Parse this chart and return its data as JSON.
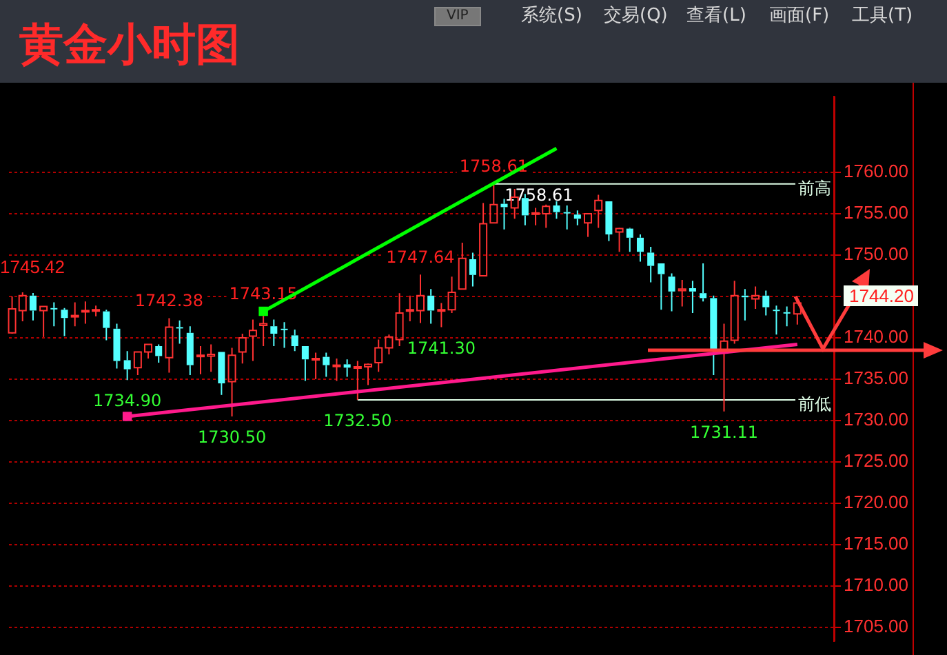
{
  "chart_data": {
    "type": "candlestick",
    "title": "黄金小时图",
    "categories": [
      null,
      null,
      null,
      null,
      null,
      null,
      null,
      null,
      null,
      null,
      null,
      null,
      null,
      null,
      null,
      null,
      null,
      null,
      null,
      null,
      null,
      null,
      null,
      null,
      null,
      null,
      null,
      null,
      null,
      null,
      null,
      null,
      null,
      null,
      null,
      null,
      null,
      null,
      null,
      null,
      null,
      null,
      null,
      null,
      null,
      null,
      null,
      null,
      null,
      null,
      null,
      null,
      null,
      null,
      null,
      null,
      null,
      null,
      null,
      null,
      null,
      null,
      null,
      null,
      null,
      null,
      null,
      null,
      null,
      null,
      null,
      null,
      null,
      null,
      null,
      null
    ],
    "ohlc": [
      [
        1740.6,
        1745.0,
        1740.5,
        1743.5
      ],
      [
        1743.3,
        1745.5,
        1742.0,
        1745.1
      ],
      [
        1745.1,
        1745.42,
        1742.1,
        1743.3
      ],
      [
        1743.3,
        1743.8,
        1740.1,
        1743.8
      ],
      [
        1743.6,
        1744.3,
        1741.4,
        1743.5
      ],
      [
        1743.4,
        1743.6,
        1740.2,
        1742.4
      ],
      [
        1742.6,
        1744.3,
        1741.4,
        1742.7
      ],
      [
        1743.2,
        1744.4,
        1741.7,
        1743.3
      ],
      [
        1743.3,
        1743.9,
        1742.6,
        1743.4
      ],
      [
        1743.2,
        1743.4,
        1739.7,
        1741.2
      ],
      [
        1741.1,
        1741.7,
        1736.3,
        1737.2
      ],
      [
        1737.3,
        1738.4,
        1734.9,
        1736.2
      ],
      [
        1736.4,
        1738.3,
        1735.5,
        1738.3
      ],
      [
        1738.3,
        1739.2,
        1737.5,
        1739.2
      ],
      [
        1739.0,
        1739.2,
        1737.0,
        1737.8
      ],
      [
        1737.6,
        1742.38,
        1735.8,
        1741.3
      ],
      [
        1741.3,
        1742.1,
        1739.3,
        1741.2
      ],
      [
        1740.6,
        1741.4,
        1735.5,
        1736.7
      ],
      [
        1737.8,
        1739.0,
        1735.6,
        1737.9
      ],
      [
        1737.8,
        1739.2,
        1735.9,
        1738.0
      ],
      [
        1738.3,
        1738.3,
        1733.1,
        1734.5
      ],
      [
        1734.7,
        1738.8,
        1730.5,
        1737.9
      ],
      [
        1738.3,
        1740.5,
        1736.9,
        1740.0
      ],
      [
        1740.2,
        1742.2,
        1737.2,
        1740.9
      ],
      [
        1741.5,
        1743.15,
        1739.0,
        1741.7
      ],
      [
        1741.4,
        1742.2,
        1739.0,
        1740.5
      ],
      [
        1741.1,
        1741.9,
        1738.8,
        1741.0
      ],
      [
        1740.3,
        1741.0,
        1738.4,
        1739.0
      ],
      [
        1739.0,
        1739.0,
        1734.8,
        1737.4
      ],
      [
        1737.4,
        1738.2,
        1735.0,
        1737.5
      ],
      [
        1737.7,
        1738.2,
        1735.3,
        1736.7
      ],
      [
        1736.6,
        1737.5,
        1734.8,
        1736.7
      ],
      [
        1736.8,
        1737.4,
        1735.3,
        1736.4
      ],
      [
        1736.4,
        1737.2,
        1732.5,
        1736.5
      ],
      [
        1736.5,
        1736.9,
        1734.3,
        1736.8
      ],
      [
        1737.0,
        1739.8,
        1735.9,
        1738.8
      ],
      [
        1738.8,
        1740.4,
        1738.0,
        1740.1
      ],
      [
        1739.8,
        1745.4,
        1739.0,
        1743.0
      ],
      [
        1743.3,
        1745.1,
        1742.0,
        1743.4
      ],
      [
        1743.3,
        1747.64,
        1741.8,
        1745.1
      ],
      [
        1745.1,
        1745.9,
        1741.7,
        1743.3
      ],
      [
        1743.3,
        1744.2,
        1741.3,
        1743.4
      ],
      [
        1743.4,
        1747.4,
        1743.0,
        1745.5
      ],
      [
        1745.9,
        1751.5,
        1745.9,
        1749.6
      ],
      [
        1749.5,
        1750.3,
        1746.2,
        1747.6
      ],
      [
        1747.5,
        1756.3,
        1747.5,
        1753.8
      ],
      [
        1753.9,
        1758.61,
        1753.9,
        1756.1
      ],
      [
        1756.2,
        1756.8,
        1753.1,
        1755.8
      ],
      [
        1755.7,
        1758.0,
        1754.4,
        1757.0
      ],
      [
        1756.9,
        1757.4,
        1753.6,
        1754.8
      ],
      [
        1755.0,
        1755.7,
        1753.6,
        1755.1
      ],
      [
        1755.0,
        1756.1,
        1753.3,
        1755.9
      ],
      [
        1756.0,
        1756.5,
        1754.4,
        1755.2
      ],
      [
        1755.2,
        1756.0,
        1753.1,
        1755.1
      ],
      [
        1754.9,
        1755.4,
        1753.6,
        1754.4
      ],
      [
        1753.9,
        1755.0,
        1752.2,
        1755.0
      ],
      [
        1755.4,
        1757.3,
        1753.3,
        1756.6
      ],
      [
        1756.5,
        1756.5,
        1751.7,
        1752.5
      ],
      [
        1752.8,
        1753.3,
        1750.4,
        1753.2
      ],
      [
        1753.2,
        1753.3,
        1750.4,
        1752.1
      ],
      [
        1752.1,
        1752.5,
        1749.2,
        1750.4
      ],
      [
        1750.3,
        1751.0,
        1746.7,
        1748.7
      ],
      [
        1749.0,
        1749.0,
        1743.4,
        1747.7
      ],
      [
        1747.4,
        1747.8,
        1743.2,
        1745.6
      ],
      [
        1745.7,
        1747.0,
        1743.8,
        1745.9
      ],
      [
        1746.0,
        1746.9,
        1743.0,
        1745.6
      ],
      [
        1745.4,
        1749.0,
        1744.4,
        1744.8
      ],
      [
        1744.8,
        1745.1,
        1735.5,
        1738.4
      ],
      [
        1738.2,
        1741.7,
        1731.11,
        1739.6
      ],
      [
        1739.7,
        1746.9,
        1739.3,
        1745.1
      ],
      [
        1745.1,
        1745.9,
        1742.1,
        1744.9
      ],
      [
        1744.7,
        1746.2,
        1743.5,
        1745.1
      ],
      [
        1745.1,
        1745.7,
        1742.7,
        1743.7
      ],
      [
        1743.4,
        1743.9,
        1740.4,
        1743.3
      ],
      [
        1743.1,
        1743.8,
        1741.4,
        1743.0
      ],
      [
        1742.9,
        1744.5,
        1741.6,
        1744.2
      ]
    ],
    "series": [
      {
        "type": "line",
        "color": "#00ff00",
        "values": [
          null,
          null,
          null,
          null,
          null,
          null,
          null,
          null,
          null,
          null,
          null,
          null,
          null,
          null,
          null,
          null,
          null,
          null,
          null,
          null,
          null,
          null,
          null,
          null,
          1743.2,
          null,
          null,
          null,
          null,
          null,
          null,
          null,
          null,
          null,
          null,
          null,
          null,
          null,
          null,
          null,
          null,
          null,
          null,
          null,
          null,
          null,
          null,
          null,
          null,
          null,
          null,
          null,
          1762.9,
          null,
          null,
          null,
          null,
          null,
          null,
          null,
          null,
          null,
          null,
          null,
          null,
          null,
          null,
          null,
          null,
          null,
          null,
          null,
          null,
          null,
          null,
          null
        ]
      },
      {
        "type": "line",
        "color": "#ff1a8c",
        "values": [
          null,
          null,
          null,
          null,
          null,
          null,
          null,
          null,
          null,
          null,
          null,
          1730.5,
          null,
          null,
          null,
          null,
          null,
          null,
          null,
          null,
          null,
          null,
          null,
          null,
          null,
          null,
          null,
          null,
          null,
          null,
          null,
          null,
          null,
          null,
          null,
          null,
          null,
          null,
          null,
          null,
          null,
          null,
          null,
          null,
          null,
          null,
          null,
          null,
          null,
          null,
          null,
          null,
          null,
          null,
          null,
          null,
          null,
          null,
          null,
          null,
          null,
          null,
          null,
          null,
          null,
          null,
          null,
          null,
          null,
          null,
          null,
          null,
          null,
          null,
          null,
          1739.2
        ]
      }
    ],
    "ylim": [
      1703.3,
      1769.2
    ],
    "yticks": [
      {
        "value": 1705,
        "label": "1705.00"
      },
      {
        "value": 1710,
        "label": "1710.00"
      },
      {
        "value": 1715,
        "label": "1715.00"
      },
      {
        "value": 1720,
        "label": "1720.00"
      },
      {
        "value": 1725,
        "label": "1725.00"
      },
      {
        "value": 1730,
        "label": "1730.00"
      },
      {
        "value": 1735,
        "label": "1735.00"
      },
      {
        "value": 1740,
        "label": "1740.00"
      },
      {
        "value": 1745,
        "label": null
      },
      {
        "value": 1750,
        "label": "1750.00"
      },
      {
        "value": 1755,
        "label": "1755.00"
      },
      {
        "value": 1760,
        "label": "1760.00"
      }
    ],
    "grid": "y",
    "ref_lines": [
      {
        "axis": "y",
        "value": 1758.61,
        "label": "前高",
        "color": "#e0ffe8"
      },
      {
        "axis": "y",
        "value": 1732.5,
        "label": "前低",
        "color": "#e0ffe8"
      }
    ],
    "annotations": [
      "VIP",
      "系统(S)",
      "交易(Q)",
      "查看(L)",
      "画面(F)",
      "工具(T)",
      "1745.42",
      "1744.20",
      {
        "text": "1742.38",
        "y": 1742.38
      },
      {
        "text": "1743.15",
        "y": 1743.15
      },
      {
        "text": "1747.64",
        "y": 1747.64
      },
      {
        "text": "1758.61",
        "y": 1758.61
      },
      {
        "text": "1758.61",
        "y": 1758.61
      },
      {
        "text": "1734.90",
        "y": 1734.9
      },
      {
        "text": "1730.50",
        "y": 1730.5
      },
      {
        "text": "1732.50",
        "y": 1732.5
      },
      {
        "text": "1741.30",
        "y": 1741.3
      },
      {
        "text": "1731.11",
        "y": 1731.11
      }
    ]
  }
}
